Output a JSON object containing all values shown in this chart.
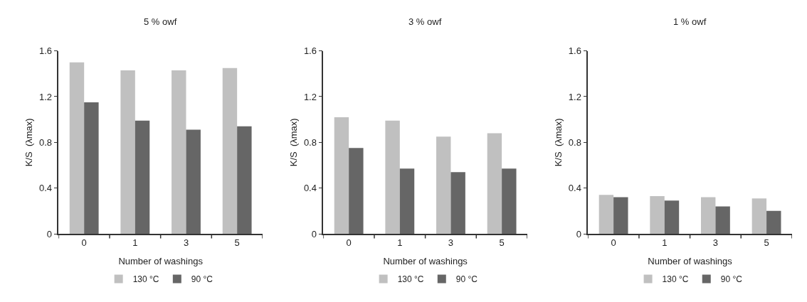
{
  "chart_data": [
    {
      "type": "bar",
      "title": "5 % owf",
      "xlabel": "Number of washings",
      "ylabel": "K/S  (λmax)",
      "categories": [
        "0",
        "1",
        "3",
        "5"
      ],
      "ylim": [
        0,
        1.6
      ],
      "yticks": [
        0,
        0.4,
        0.8,
        1.2,
        1.6
      ],
      "legend": "bottom",
      "series": [
        {
          "name": "130 °C",
          "color": "#c0c0c0",
          "values": [
            1.5,
            1.43,
            1.43,
            1.45
          ]
        },
        {
          "name": "90 °C",
          "color": "#666666",
          "values": [
            1.15,
            0.99,
            0.91,
            0.94
          ]
        }
      ]
    },
    {
      "type": "bar",
      "title": "3 % owf",
      "xlabel": "Number of washings",
      "ylabel": "K/S  (λmax)",
      "categories": [
        "0",
        "1",
        "3",
        "5"
      ],
      "ylim": [
        0,
        1.6
      ],
      "yticks": [
        0,
        0.4,
        0.8,
        1.2,
        1.6
      ],
      "legend": "bottom",
      "series": [
        {
          "name": "130 °C",
          "color": "#c0c0c0",
          "values": [
            1.02,
            0.99,
            0.85,
            0.88
          ]
        },
        {
          "name": "90 °C",
          "color": "#666666",
          "values": [
            0.75,
            0.57,
            0.54,
            0.57
          ]
        }
      ]
    },
    {
      "type": "bar",
      "title": "1 % owf",
      "xlabel": "Number of washings",
      "ylabel": "K/S  (λmax)",
      "categories": [
        "0",
        "1",
        "3",
        "5"
      ],
      "ylim": [
        0,
        1.6
      ],
      "yticks": [
        0,
        0.4,
        0.8,
        1.2,
        1.6
      ],
      "legend": "bottom",
      "series": [
        {
          "name": "130 °C",
          "color": "#c0c0c0",
          "values": [
            0.34,
            0.33,
            0.32,
            0.31
          ]
        },
        {
          "name": "90 °C",
          "color": "#666666",
          "values": [
            0.32,
            0.29,
            0.24,
            0.2
          ]
        }
      ]
    }
  ]
}
